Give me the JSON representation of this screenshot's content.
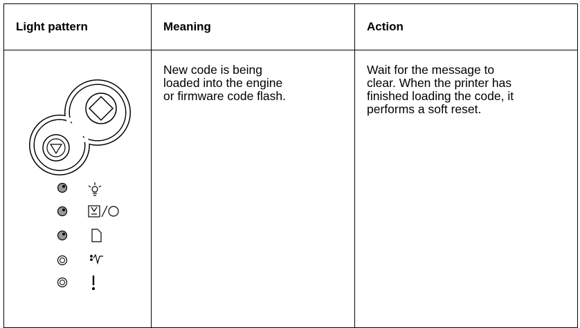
{
  "table": {
    "header": [
      "Light pattern",
      "Meaning",
      "Action"
    ],
    "rows": [
      {
        "meaning": [
          "New code is being",
          "loaded into the engine",
          "or firmware code flash."
        ],
        "action": [
          "Wait for the message to",
          "clear. When the printer has",
          "finished loading the code, it",
          "performs a soft reset."
        ]
      }
    ]
  }
}
